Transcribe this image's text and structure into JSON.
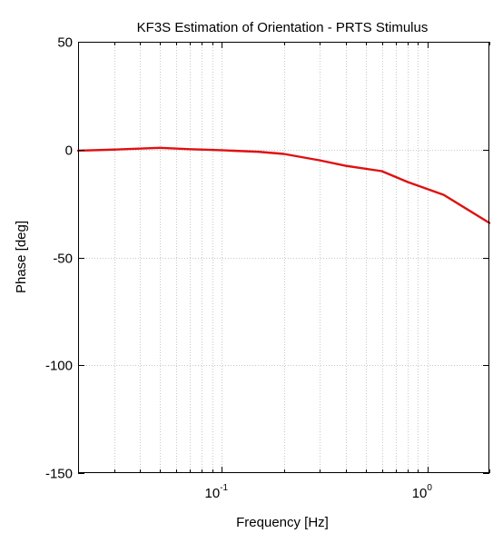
{
  "chart_data": {
    "type": "line",
    "title": "KF3S Estimation of Orientation - PRTS Stimulus",
    "xlabel": "Frequency [Hz]",
    "ylabel": "Phase [deg]",
    "xscale": "log",
    "xlim": [
      0.02,
      2.0
    ],
    "ylim": [
      -150,
      50
    ],
    "grid": true,
    "x_tick_labels": [
      {
        "value": 0.1,
        "base": "10",
        "exp": "-1"
      },
      {
        "value": 1.0,
        "base": "10",
        "exp": "0"
      }
    ],
    "y_tick_labels": [
      {
        "value": 50,
        "label": "50"
      },
      {
        "value": 0,
        "label": "0"
      },
      {
        "value": -50,
        "label": "-50"
      },
      {
        "value": -100,
        "label": "-100"
      },
      {
        "value": -150,
        "label": "-150"
      }
    ],
    "series": [
      {
        "color": "#e01010",
        "x": [
          0.02,
          0.03,
          0.05,
          0.07,
          0.1,
          0.15,
          0.2,
          0.3,
          0.4,
          0.6,
          0.8,
          1.2,
          2.0
        ],
        "y": [
          -0.5,
          0.0,
          0.8,
          0.2,
          -0.3,
          -1.0,
          -2.0,
          -5.0,
          -7.5,
          -10.0,
          -15.0,
          -21.0,
          -34.0
        ]
      }
    ]
  }
}
